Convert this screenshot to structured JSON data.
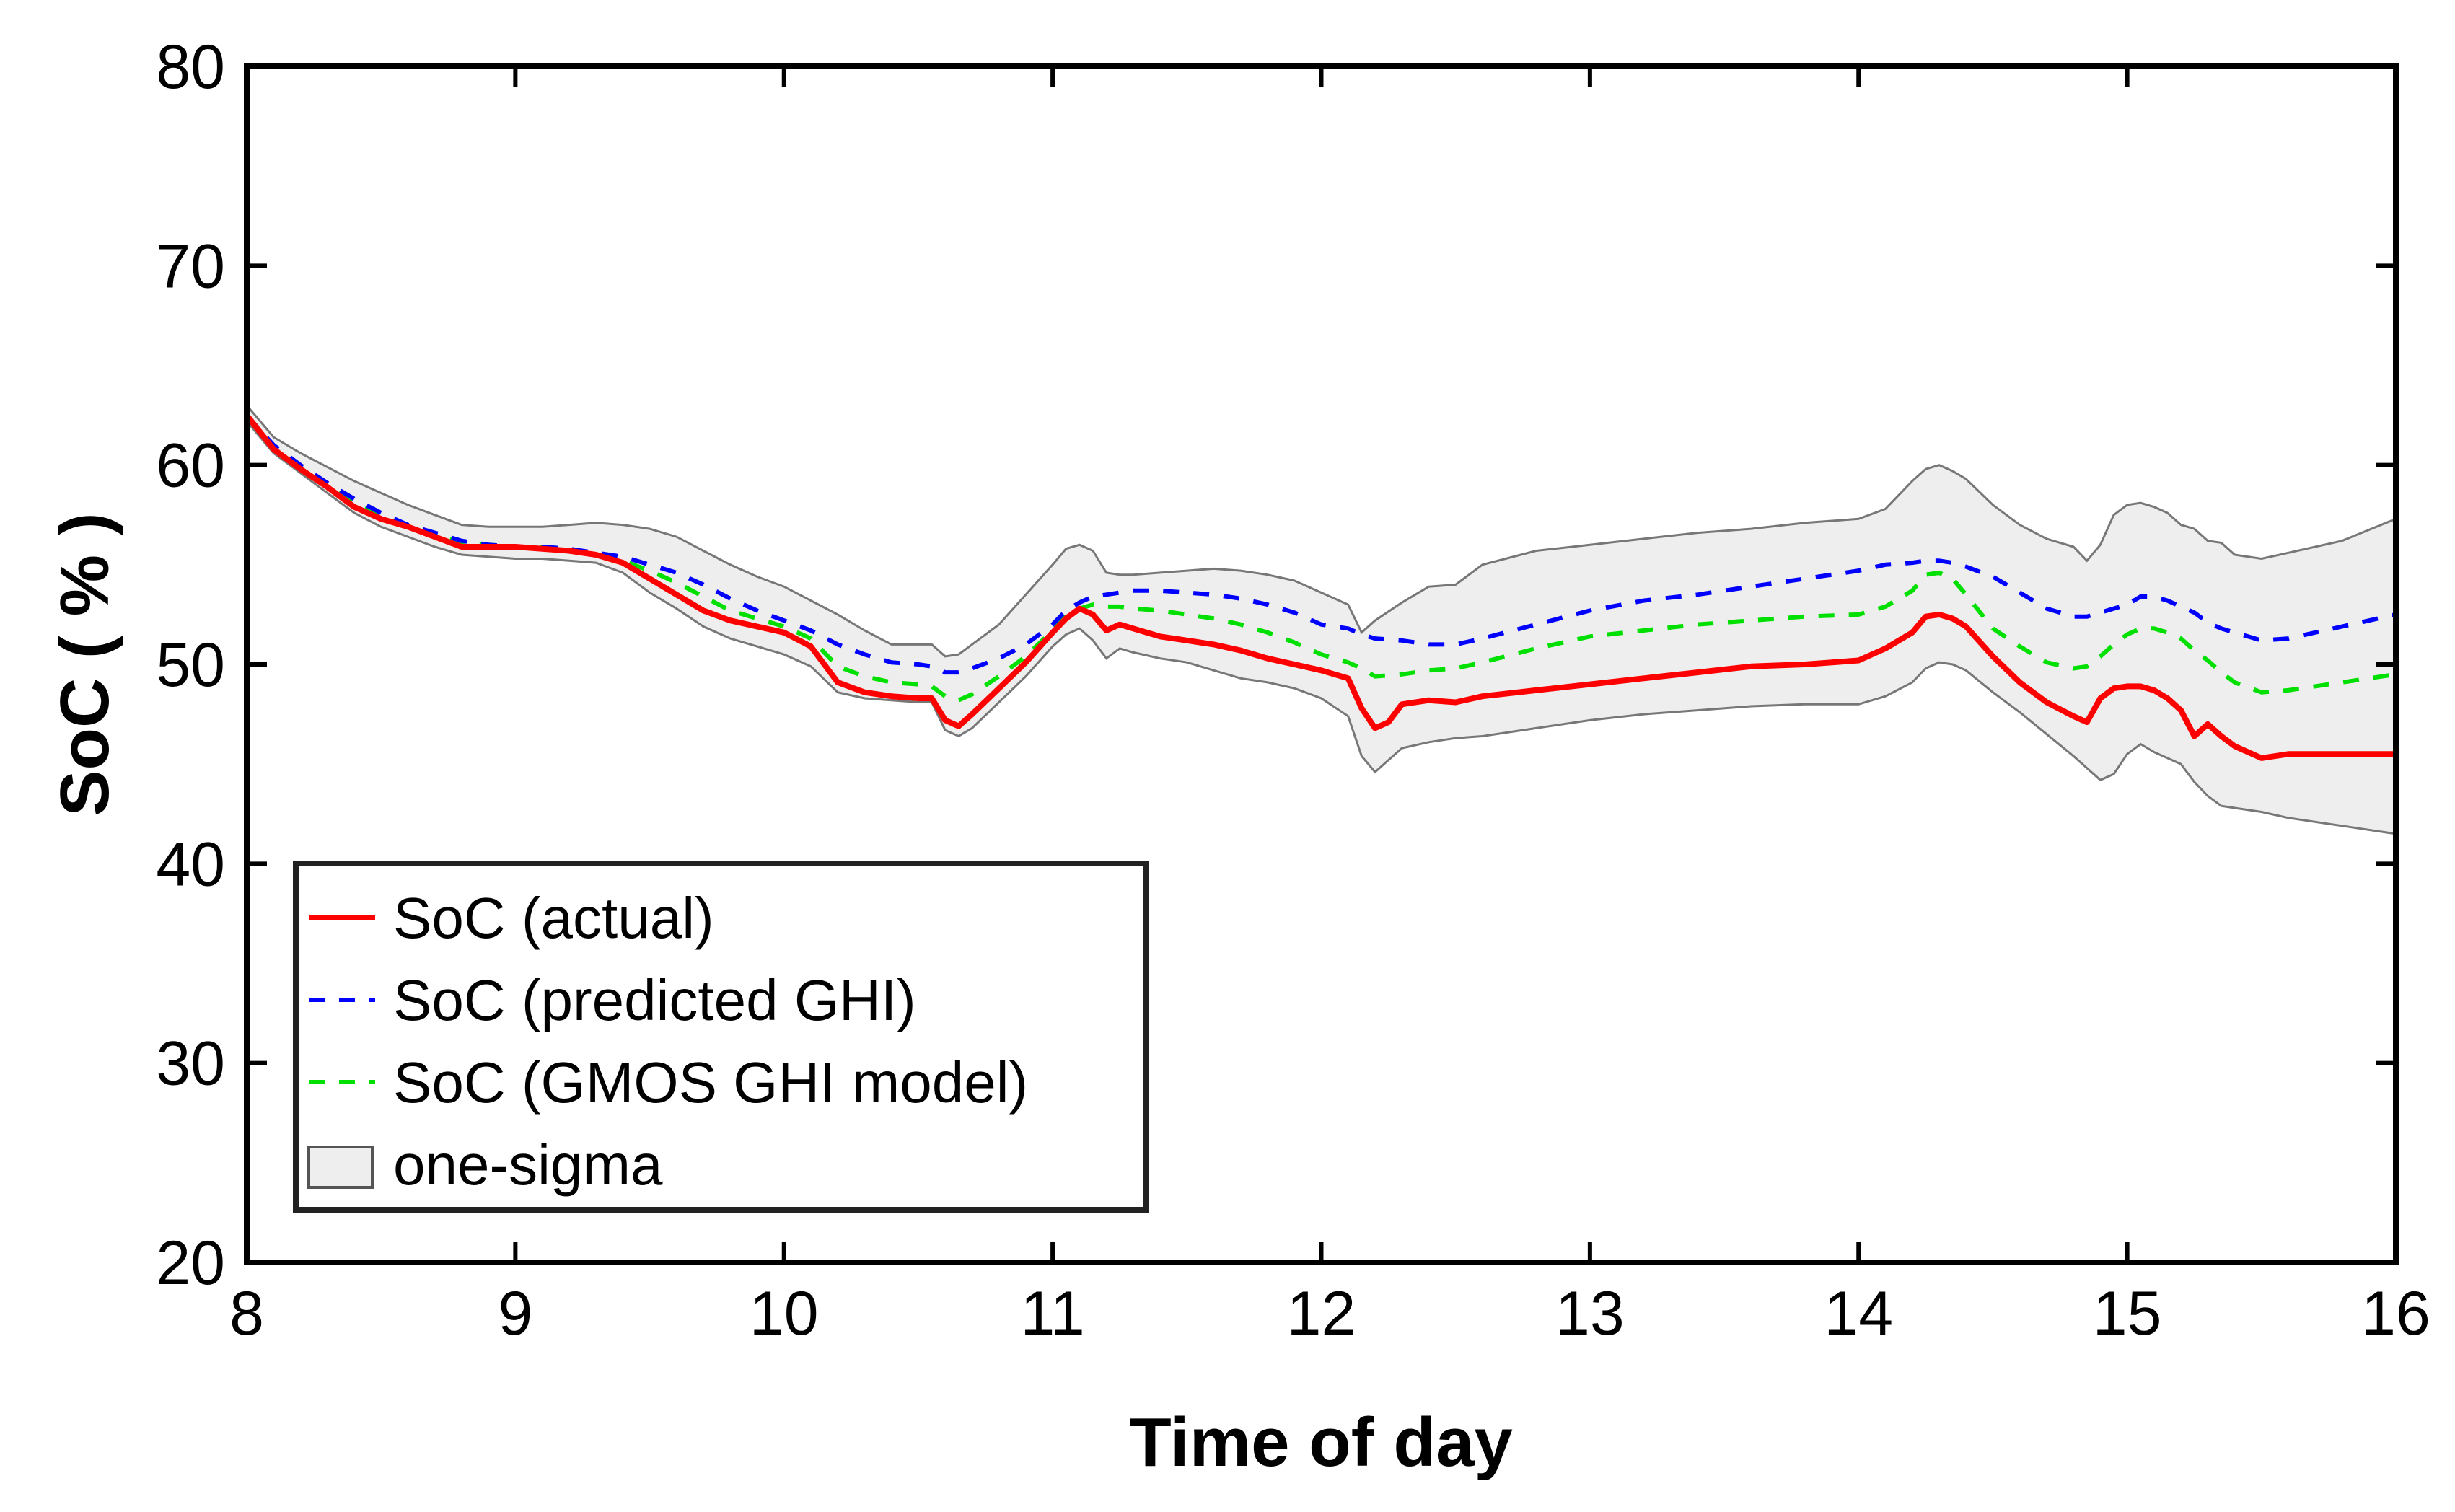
{
  "chart_data": {
    "type": "line",
    "xlabel": "Time of day",
    "ylabel": "SoC ( % )",
    "xlim": [
      8,
      16
    ],
    "ylim": [
      20,
      80
    ],
    "xticks": [
      8,
      9,
      10,
      11,
      12,
      13,
      14,
      15,
      16
    ],
    "yticks": [
      20,
      30,
      40,
      50,
      60,
      70,
      80
    ],
    "grid": false,
    "legend_position": "bottom-left",
    "series": [
      {
        "name": "SoC (actual)",
        "style": "solid",
        "color": "#ff0000",
        "x": [
          8.0,
          8.1,
          8.2,
          8.3,
          8.4,
          8.5,
          8.6,
          8.7,
          8.8,
          8.9,
          9.0,
          9.1,
          9.2,
          9.3,
          9.4,
          9.5,
          9.6,
          9.7,
          9.8,
          9.9,
          10.0,
          10.1,
          10.2,
          10.3,
          10.4,
          10.5,
          10.55,
          10.6,
          10.65,
          10.7,
          10.8,
          10.9,
          11.0,
          11.05,
          11.1,
          11.15,
          11.2,
          11.25,
          11.3,
          11.4,
          11.5,
          11.6,
          11.7,
          11.8,
          11.9,
          12.0,
          12.1,
          12.15,
          12.2,
          12.25,
          12.3,
          12.4,
          12.5,
          12.6,
          12.8,
          13.0,
          13.2,
          13.4,
          13.6,
          13.8,
          14.0,
          14.1,
          14.2,
          14.25,
          14.3,
          14.35,
          14.4,
          14.5,
          14.6,
          14.7,
          14.8,
          14.85,
          14.9,
          14.95,
          15.0,
          15.05,
          15.1,
          15.15,
          15.2,
          15.25,
          15.3,
          15.35,
          15.4,
          15.5,
          15.6,
          15.8,
          16.0
        ],
        "y": [
          62.5,
          60.8,
          59.8,
          58.9,
          57.9,
          57.3,
          56.9,
          56.4,
          55.9,
          55.9,
          55.9,
          55.8,
          55.7,
          55.5,
          55.1,
          54.3,
          53.5,
          52.7,
          52.2,
          51.9,
          51.6,
          50.9,
          49.1,
          48.6,
          48.4,
          48.3,
          48.3,
          47.2,
          46.9,
          47.5,
          48.8,
          50.1,
          51.6,
          52.3,
          52.8,
          52.5,
          51.7,
          52.0,
          51.8,
          51.4,
          51.2,
          51.0,
          50.7,
          50.3,
          50.0,
          49.7,
          49.3,
          47.8,
          46.8,
          47.1,
          48.0,
          48.2,
          48.1,
          48.4,
          48.7,
          49.0,
          49.3,
          49.6,
          49.9,
          50.0,
          50.2,
          50.8,
          51.6,
          52.4,
          52.5,
          52.3,
          51.9,
          50.4,
          49.1,
          48.1,
          47.4,
          47.1,
          48.3,
          48.8,
          48.9,
          48.9,
          48.7,
          48.3,
          47.7,
          46.4,
          47.0,
          46.4,
          45.9,
          45.3,
          45.5,
          45.5,
          45.5
        ]
      },
      {
        "name": "SoC (predicted GHI)",
        "style": "dashed",
        "color": "#0000ff",
        "x": [
          8.0,
          8.1,
          8.2,
          8.3,
          8.4,
          8.5,
          8.6,
          8.7,
          8.8,
          8.9,
          9.0,
          9.1,
          9.2,
          9.3,
          9.4,
          9.5,
          9.6,
          9.7,
          9.8,
          9.9,
          10.0,
          10.1,
          10.2,
          10.3,
          10.4,
          10.5,
          10.55,
          10.6,
          10.65,
          10.7,
          10.8,
          10.9,
          11.0,
          11.05,
          11.1,
          11.15,
          11.2,
          11.25,
          11.3,
          11.4,
          11.5,
          11.6,
          11.7,
          11.8,
          11.9,
          12.0,
          12.1,
          12.15,
          12.2,
          12.3,
          12.4,
          12.5,
          12.6,
          12.8,
          13.0,
          13.2,
          13.4,
          13.6,
          13.8,
          14.0,
          14.1,
          14.2,
          14.25,
          14.3,
          14.35,
          14.4,
          14.5,
          14.6,
          14.7,
          14.8,
          14.85,
          14.9,
          14.95,
          15.0,
          15.05,
          15.1,
          15.15,
          15.2,
          15.25,
          15.3,
          15.35,
          15.4,
          15.5,
          15.6,
          15.8,
          16.0
        ],
        "y": [
          62.5,
          61.0,
          60.0,
          59.1,
          58.3,
          57.6,
          57.0,
          56.6,
          56.2,
          56.0,
          55.9,
          55.9,
          55.8,
          55.6,
          55.4,
          55.0,
          54.6,
          54.0,
          53.3,
          52.7,
          52.2,
          51.7,
          51.0,
          50.5,
          50.1,
          50.0,
          49.9,
          49.6,
          49.6,
          49.8,
          50.3,
          51.0,
          52.0,
          52.7,
          53.1,
          53.4,
          53.5,
          53.6,
          53.7,
          53.7,
          53.6,
          53.5,
          53.3,
          53.0,
          52.6,
          52.0,
          51.8,
          51.5,
          51.3,
          51.2,
          51.0,
          51.0,
          51.3,
          52.0,
          52.7,
          53.2,
          53.5,
          53.9,
          54.3,
          54.7,
          55.0,
          55.1,
          55.2,
          55.2,
          55.1,
          54.9,
          54.4,
          53.6,
          52.8,
          52.4,
          52.4,
          52.6,
          52.8,
          53.0,
          53.4,
          53.4,
          53.2,
          52.9,
          52.6,
          52.1,
          51.8,
          51.6,
          51.2,
          51.3,
          51.9,
          52.5
        ]
      },
      {
        "name": "SoC (GMOS GHI model)",
        "style": "dashed",
        "color": "#00e000",
        "x": [
          8.0,
          8.1,
          8.2,
          8.3,
          8.4,
          8.5,
          8.6,
          8.7,
          8.8,
          8.9,
          9.0,
          9.1,
          9.2,
          9.3,
          9.4,
          9.5,
          9.6,
          9.7,
          9.8,
          9.9,
          10.0,
          10.1,
          10.2,
          10.3,
          10.4,
          10.5,
          10.55,
          10.6,
          10.65,
          10.7,
          10.8,
          10.9,
          11.0,
          11.05,
          11.1,
          11.15,
          11.2,
          11.25,
          11.3,
          11.4,
          11.5,
          11.6,
          11.7,
          11.8,
          11.9,
          12.0,
          12.1,
          12.15,
          12.2,
          12.3,
          12.4,
          12.5,
          12.6,
          12.8,
          13.0,
          13.2,
          13.4,
          13.6,
          13.8,
          14.0,
          14.1,
          14.2,
          14.25,
          14.3,
          14.35,
          14.4,
          14.5,
          14.6,
          14.7,
          14.8,
          14.85,
          14.9,
          14.95,
          15.0,
          15.05,
          15.1,
          15.15,
          15.2,
          15.25,
          15.3,
          15.35,
          15.4,
          15.5,
          15.6,
          15.8,
          16.0
        ],
        "y": [
          62.5,
          60.9,
          59.9,
          59.0,
          58.1,
          57.4,
          56.9,
          56.5,
          56.1,
          56.0,
          55.9,
          55.9,
          55.7,
          55.5,
          55.2,
          54.7,
          54.1,
          53.4,
          52.7,
          52.3,
          51.9,
          51.3,
          49.9,
          49.4,
          49.1,
          49.0,
          48.9,
          48.4,
          48.2,
          48.5,
          49.4,
          50.4,
          51.7,
          52.4,
          52.8,
          53.0,
          52.9,
          52.9,
          52.8,
          52.7,
          52.5,
          52.3,
          52.0,
          51.6,
          51.1,
          50.5,
          50.1,
          49.8,
          49.4,
          49.5,
          49.7,
          49.8,
          50.1,
          50.8,
          51.4,
          51.7,
          52.0,
          52.2,
          52.4,
          52.5,
          52.9,
          53.7,
          54.5,
          54.6,
          54.3,
          53.5,
          51.8,
          50.9,
          50.1,
          49.8,
          49.9,
          50.4,
          51.0,
          51.5,
          51.8,
          51.8,
          51.6,
          51.3,
          50.7,
          50.2,
          49.6,
          49.1,
          48.6,
          48.7,
          49.1,
          49.5
        ]
      }
    ],
    "band": {
      "name": "one-sigma",
      "fill": "#eeeeee",
      "edge": "#777777",
      "x": [
        8.0,
        8.1,
        8.2,
        8.3,
        8.4,
        8.5,
        8.6,
        8.7,
        8.8,
        8.9,
        9.0,
        9.1,
        9.2,
        9.3,
        9.4,
        9.5,
        9.6,
        9.7,
        9.8,
        9.9,
        10.0,
        10.1,
        10.2,
        10.3,
        10.4,
        10.5,
        10.55,
        10.6,
        10.65,
        10.7,
        10.8,
        10.9,
        11.0,
        11.05,
        11.1,
        11.15,
        11.2,
        11.25,
        11.3,
        11.4,
        11.5,
        11.6,
        11.7,
        11.8,
        11.9,
        12.0,
        12.1,
        12.15,
        12.2,
        12.3,
        12.4,
        12.5,
        12.6,
        12.8,
        13.0,
        13.2,
        13.4,
        13.6,
        13.8,
        14.0,
        14.1,
        14.2,
        14.25,
        14.3,
        14.35,
        14.4,
        14.5,
        14.6,
        14.7,
        14.8,
        14.85,
        14.9,
        14.95,
        15.0,
        15.05,
        15.1,
        15.15,
        15.2,
        15.25,
        15.3,
        15.35,
        15.4,
        15.5,
        15.6,
        15.8,
        16.0
      ],
      "upper": [
        63.0,
        61.4,
        60.6,
        59.9,
        59.2,
        58.6,
        58.0,
        57.5,
        57.0,
        56.9,
        56.9,
        56.9,
        57.0,
        57.1,
        57.0,
        56.8,
        56.4,
        55.7,
        55.0,
        54.4,
        53.9,
        53.2,
        52.5,
        51.7,
        51.0,
        51.0,
        51.0,
        50.4,
        50.5,
        51.0,
        52.0,
        53.5,
        55.0,
        55.8,
        56.0,
        55.7,
        54.6,
        54.5,
        54.5,
        54.6,
        54.7,
        54.8,
        54.7,
        54.5,
        54.2,
        53.6,
        53.0,
        51.6,
        52.2,
        53.1,
        53.9,
        54.0,
        55.0,
        55.7,
        56.0,
        56.3,
        56.6,
        56.8,
        57.1,
        57.3,
        57.8,
        59.2,
        59.8,
        60.0,
        59.7,
        59.3,
        58.0,
        57.0,
        56.3,
        55.9,
        55.2,
        56.0,
        57.5,
        58.0,
        58.1,
        57.9,
        57.6,
        57.0,
        56.8,
        56.2,
        56.1,
        55.5,
        55.3,
        55.6,
        56.2,
        57.3
      ],
      "lower": [
        62.2,
        60.6,
        59.6,
        58.6,
        57.6,
        56.9,
        56.4,
        55.9,
        55.5,
        55.4,
        55.3,
        55.3,
        55.2,
        55.1,
        54.6,
        53.6,
        52.8,
        51.9,
        51.3,
        50.9,
        50.5,
        49.9,
        48.6,
        48.3,
        48.2,
        48.1,
        48.1,
        46.7,
        46.4,
        46.8,
        48.1,
        49.4,
        50.9,
        51.5,
        51.8,
        51.2,
        50.3,
        50.8,
        50.6,
        50.3,
        50.1,
        49.7,
        49.3,
        49.1,
        48.8,
        48.3,
        47.4,
        45.4,
        44.6,
        45.8,
        46.1,
        46.3,
        46.4,
        46.8,
        47.2,
        47.5,
        47.7,
        47.9,
        48.0,
        48.0,
        48.4,
        49.1,
        49.8,
        50.1,
        50.0,
        49.7,
        48.6,
        47.6,
        46.5,
        45.4,
        44.8,
        44.2,
        44.5,
        45.5,
        46.0,
        45.6,
        45.3,
        45.0,
        44.1,
        43.4,
        42.9,
        42.8,
        42.6,
        42.3,
        41.9,
        41.5
      ]
    },
    "legend": [
      "SoC (actual)",
      "SoC (predicted GHI)",
      "SoC (GMOS GHI model)",
      "one-sigma"
    ]
  }
}
